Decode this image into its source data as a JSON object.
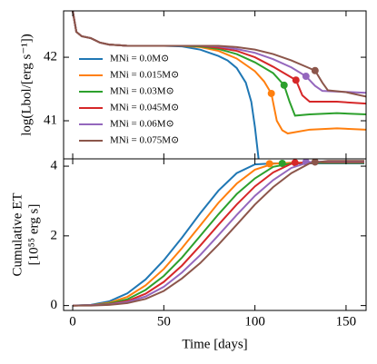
{
  "chart_data": [
    {
      "type": "line",
      "ylabel": "log(Lbol/[erg s⁻¹])",
      "xlim": [
        -5,
        161
      ],
      "ylim": [
        40.4,
        42.73
      ],
      "yticks": [
        41,
        42
      ],
      "legend": "lower left",
      "series": [
        {
          "name": "MNi = 0.0M⊙",
          "color": "#1f77b4",
          "x": [
            0,
            2,
            5,
            10,
            15,
            20,
            30,
            40,
            50,
            60,
            70,
            80,
            85,
            90,
            95,
            98,
            100,
            102
          ],
          "values": [
            42.73,
            42.4,
            42.33,
            42.3,
            42.23,
            42.2,
            42.18,
            42.18,
            42.18,
            42.17,
            42.12,
            42.02,
            41.95,
            41.83,
            41.6,
            41.3,
            40.9,
            40.4
          ]
        },
        {
          "name": "MNi = 0.015M⊙",
          "color": "#ff7f0e",
          "x": [
            0,
            2,
            5,
            10,
            15,
            20,
            30,
            40,
            50,
            60,
            70,
            80,
            90,
            100,
            105,
            109,
            112,
            115,
            118,
            130,
            145,
            161
          ],
          "values": [
            42.73,
            42.4,
            42.33,
            42.3,
            42.23,
            42.2,
            42.18,
            42.18,
            42.18,
            42.18,
            42.16,
            42.1,
            41.98,
            41.78,
            41.62,
            41.43,
            41.0,
            40.85,
            40.8,
            40.86,
            40.88,
            40.86
          ],
          "marker": {
            "x": 109,
            "y": 41.43
          }
        },
        {
          "name": "MNi = 0.03M⊙",
          "color": "#2ca02c",
          "x": [
            0,
            2,
            5,
            10,
            15,
            20,
            30,
            40,
            50,
            60,
            70,
            80,
            90,
            100,
            110,
            116,
            119,
            122,
            130,
            145,
            161
          ],
          "values": [
            42.73,
            42.4,
            42.33,
            42.3,
            42.23,
            42.2,
            42.18,
            42.18,
            42.18,
            42.18,
            42.17,
            42.13,
            42.05,
            41.92,
            41.75,
            41.56,
            41.3,
            41.08,
            41.1,
            41.12,
            41.1
          ],
          "marker": {
            "x": 116,
            "y": 41.56
          }
        },
        {
          "name": "MNi = 0.045M⊙",
          "color": "#d62728",
          "x": [
            0,
            2,
            5,
            10,
            15,
            20,
            30,
            40,
            50,
            60,
            70,
            80,
            90,
            100,
            110,
            122.5,
            126,
            130,
            145,
            161
          ],
          "values": [
            42.73,
            42.4,
            42.33,
            42.3,
            42.23,
            42.2,
            42.18,
            42.18,
            42.18,
            42.18,
            42.18,
            42.15,
            42.1,
            42.0,
            41.85,
            41.64,
            41.4,
            41.3,
            41.3,
            41.27
          ],
          "marker": {
            "x": 122.5,
            "y": 41.64
          }
        },
        {
          "name": "MNi = 0.06M⊙",
          "color": "#9467bd",
          "x": [
            0,
            2,
            5,
            10,
            15,
            20,
            30,
            40,
            50,
            60,
            70,
            80,
            90,
            100,
            110,
            120,
            128,
            133,
            137,
            145,
            161
          ],
          "values": [
            42.73,
            42.4,
            42.33,
            42.3,
            42.23,
            42.2,
            42.18,
            42.18,
            42.18,
            42.18,
            42.18,
            42.17,
            42.13,
            42.07,
            41.97,
            41.84,
            41.7,
            41.55,
            41.47,
            41.46,
            41.44
          ],
          "marker": {
            "x": 128,
            "y": 41.7
          }
        },
        {
          "name": "MNi = 0.075M⊙",
          "color": "#8c564b",
          "x": [
            0,
            2,
            5,
            10,
            15,
            20,
            30,
            40,
            50,
            60,
            70,
            80,
            90,
            100,
            110,
            120,
            133,
            137,
            140,
            150,
            161
          ],
          "values": [
            42.73,
            42.4,
            42.33,
            42.3,
            42.23,
            42.2,
            42.18,
            42.18,
            42.18,
            42.18,
            42.18,
            42.18,
            42.16,
            42.12,
            42.05,
            41.95,
            41.79,
            41.6,
            41.48,
            41.45,
            41.38
          ],
          "marker": {
            "x": 133,
            "y": 41.79
          }
        }
      ]
    },
    {
      "type": "line",
      "ylabel": [
        "Cumulative ET",
        "[10⁵⁵ erg s]"
      ],
      "xlabel": "Time [days]",
      "xlim": [
        -5,
        161
      ],
      "ylim": [
        -0.14,
        4.21
      ],
      "xticks": [
        0,
        50,
        100,
        150
      ],
      "yticks": [
        0,
        2,
        4
      ],
      "series": [
        {
          "color": "#1f77b4",
          "x": [
            0,
            10,
            20,
            30,
            40,
            50,
            60,
            70,
            80,
            90,
            100,
            110,
            120,
            130,
            140,
            150,
            160
          ],
          "values": [
            0,
            0.02,
            0.12,
            0.35,
            0.75,
            1.3,
            1.95,
            2.65,
            3.3,
            3.8,
            4.05,
            4.08,
            4.08,
            4.08,
            4.08,
            4.08,
            4.08
          ]
        },
        {
          "color": "#ff7f0e",
          "x": [
            0,
            10,
            20,
            30,
            40,
            50,
            60,
            70,
            80,
            90,
            100,
            110,
            120,
            130,
            140,
            150,
            160
          ],
          "values": [
            0,
            0.01,
            0.08,
            0.25,
            0.58,
            1.05,
            1.65,
            2.3,
            2.95,
            3.5,
            3.9,
            4.07,
            4.1,
            4.1,
            4.1,
            4.1,
            4.1
          ],
          "marker": {
            "x": 108,
            "y": 4.07
          }
        },
        {
          "color": "#2ca02c",
          "x": [
            0,
            10,
            20,
            30,
            40,
            50,
            60,
            70,
            80,
            90,
            100,
            110,
            120,
            130,
            140,
            150,
            160
          ],
          "values": [
            0,
            0.01,
            0.06,
            0.18,
            0.45,
            0.85,
            1.38,
            2.0,
            2.62,
            3.2,
            3.65,
            3.98,
            4.08,
            4.1,
            4.1,
            4.1,
            4.1
          ],
          "marker": {
            "x": 115,
            "y": 4.08
          }
        },
        {
          "color": "#d62728",
          "x": [
            0,
            10,
            20,
            30,
            40,
            50,
            60,
            70,
            80,
            90,
            100,
            110,
            120,
            130,
            140,
            150,
            160
          ],
          "values": [
            0,
            0.01,
            0.04,
            0.13,
            0.34,
            0.68,
            1.15,
            1.72,
            2.32,
            2.9,
            3.42,
            3.82,
            4.07,
            4.12,
            4.12,
            4.12,
            4.12
          ],
          "marker": {
            "x": 122,
            "y": 4.1
          }
        },
        {
          "color": "#9467bd",
          "x": [
            0,
            10,
            20,
            30,
            40,
            50,
            60,
            70,
            80,
            90,
            100,
            110,
            120,
            130,
            140,
            150,
            160
          ],
          "values": [
            0,
            0.01,
            0.03,
            0.1,
            0.26,
            0.54,
            0.95,
            1.45,
            2.02,
            2.6,
            3.15,
            3.6,
            3.95,
            4.12,
            4.14,
            4.14,
            4.14
          ],
          "marker": {
            "x": 128,
            "y": 4.12
          }
        },
        {
          "color": "#8c564b",
          "x": [
            0,
            10,
            20,
            30,
            40,
            50,
            60,
            70,
            80,
            90,
            100,
            110,
            120,
            130,
            140,
            150,
            160
          ],
          "values": [
            0,
            0.0,
            0.02,
            0.07,
            0.19,
            0.42,
            0.78,
            1.22,
            1.75,
            2.32,
            2.9,
            3.4,
            3.8,
            4.08,
            4.15,
            4.15,
            4.15
          ],
          "marker": {
            "x": 133,
            "y": 4.12
          }
        }
      ]
    }
  ]
}
